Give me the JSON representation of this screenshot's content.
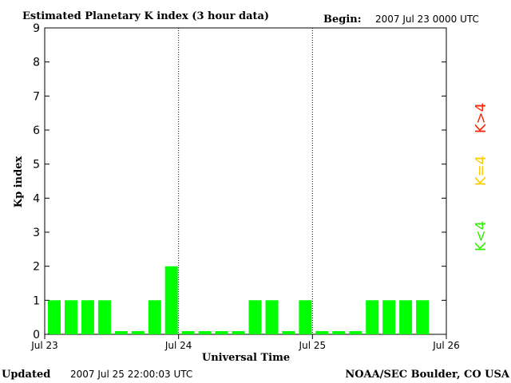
{
  "chart_data": {
    "type": "bar",
    "title": "Estimated Planetary K index (3 hour data)",
    "begin_label": "Begin:",
    "begin_value": "2007 Jul 23 0000 UTC",
    "xlabel": "Universal Time",
    "ylabel": "Kp index",
    "ylim": [
      0,
      9
    ],
    "yticks": [
      "0",
      "1",
      "2",
      "3",
      "4",
      "5",
      "6",
      "7",
      "8",
      "9"
    ],
    "xticks": [
      "Jul 23",
      "Jul 24",
      "Jul 25",
      "Jul 26"
    ],
    "values": [
      1,
      1,
      1,
      1,
      0,
      0,
      1,
      2,
      0,
      0,
      0,
      0,
      1,
      1,
      0,
      1,
      0,
      0,
      0,
      1,
      1,
      1,
      1
    ],
    "bar_color": "#00ff00",
    "grid": false,
    "day_dividers": "dotted",
    "legend": [
      {
        "label": "K<4",
        "color": "#33ee00"
      },
      {
        "label": "K=4",
        "color": "#ffcc00"
      },
      {
        "label": "K>4",
        "color": "#ff2200"
      }
    ],
    "legend_placement": "right"
  },
  "footer": {
    "updated_label": "Updated",
    "updated_value": "2007 Jul 25 22:00:03 UTC",
    "source": "NOAA/SEC Boulder, CO USA"
  }
}
